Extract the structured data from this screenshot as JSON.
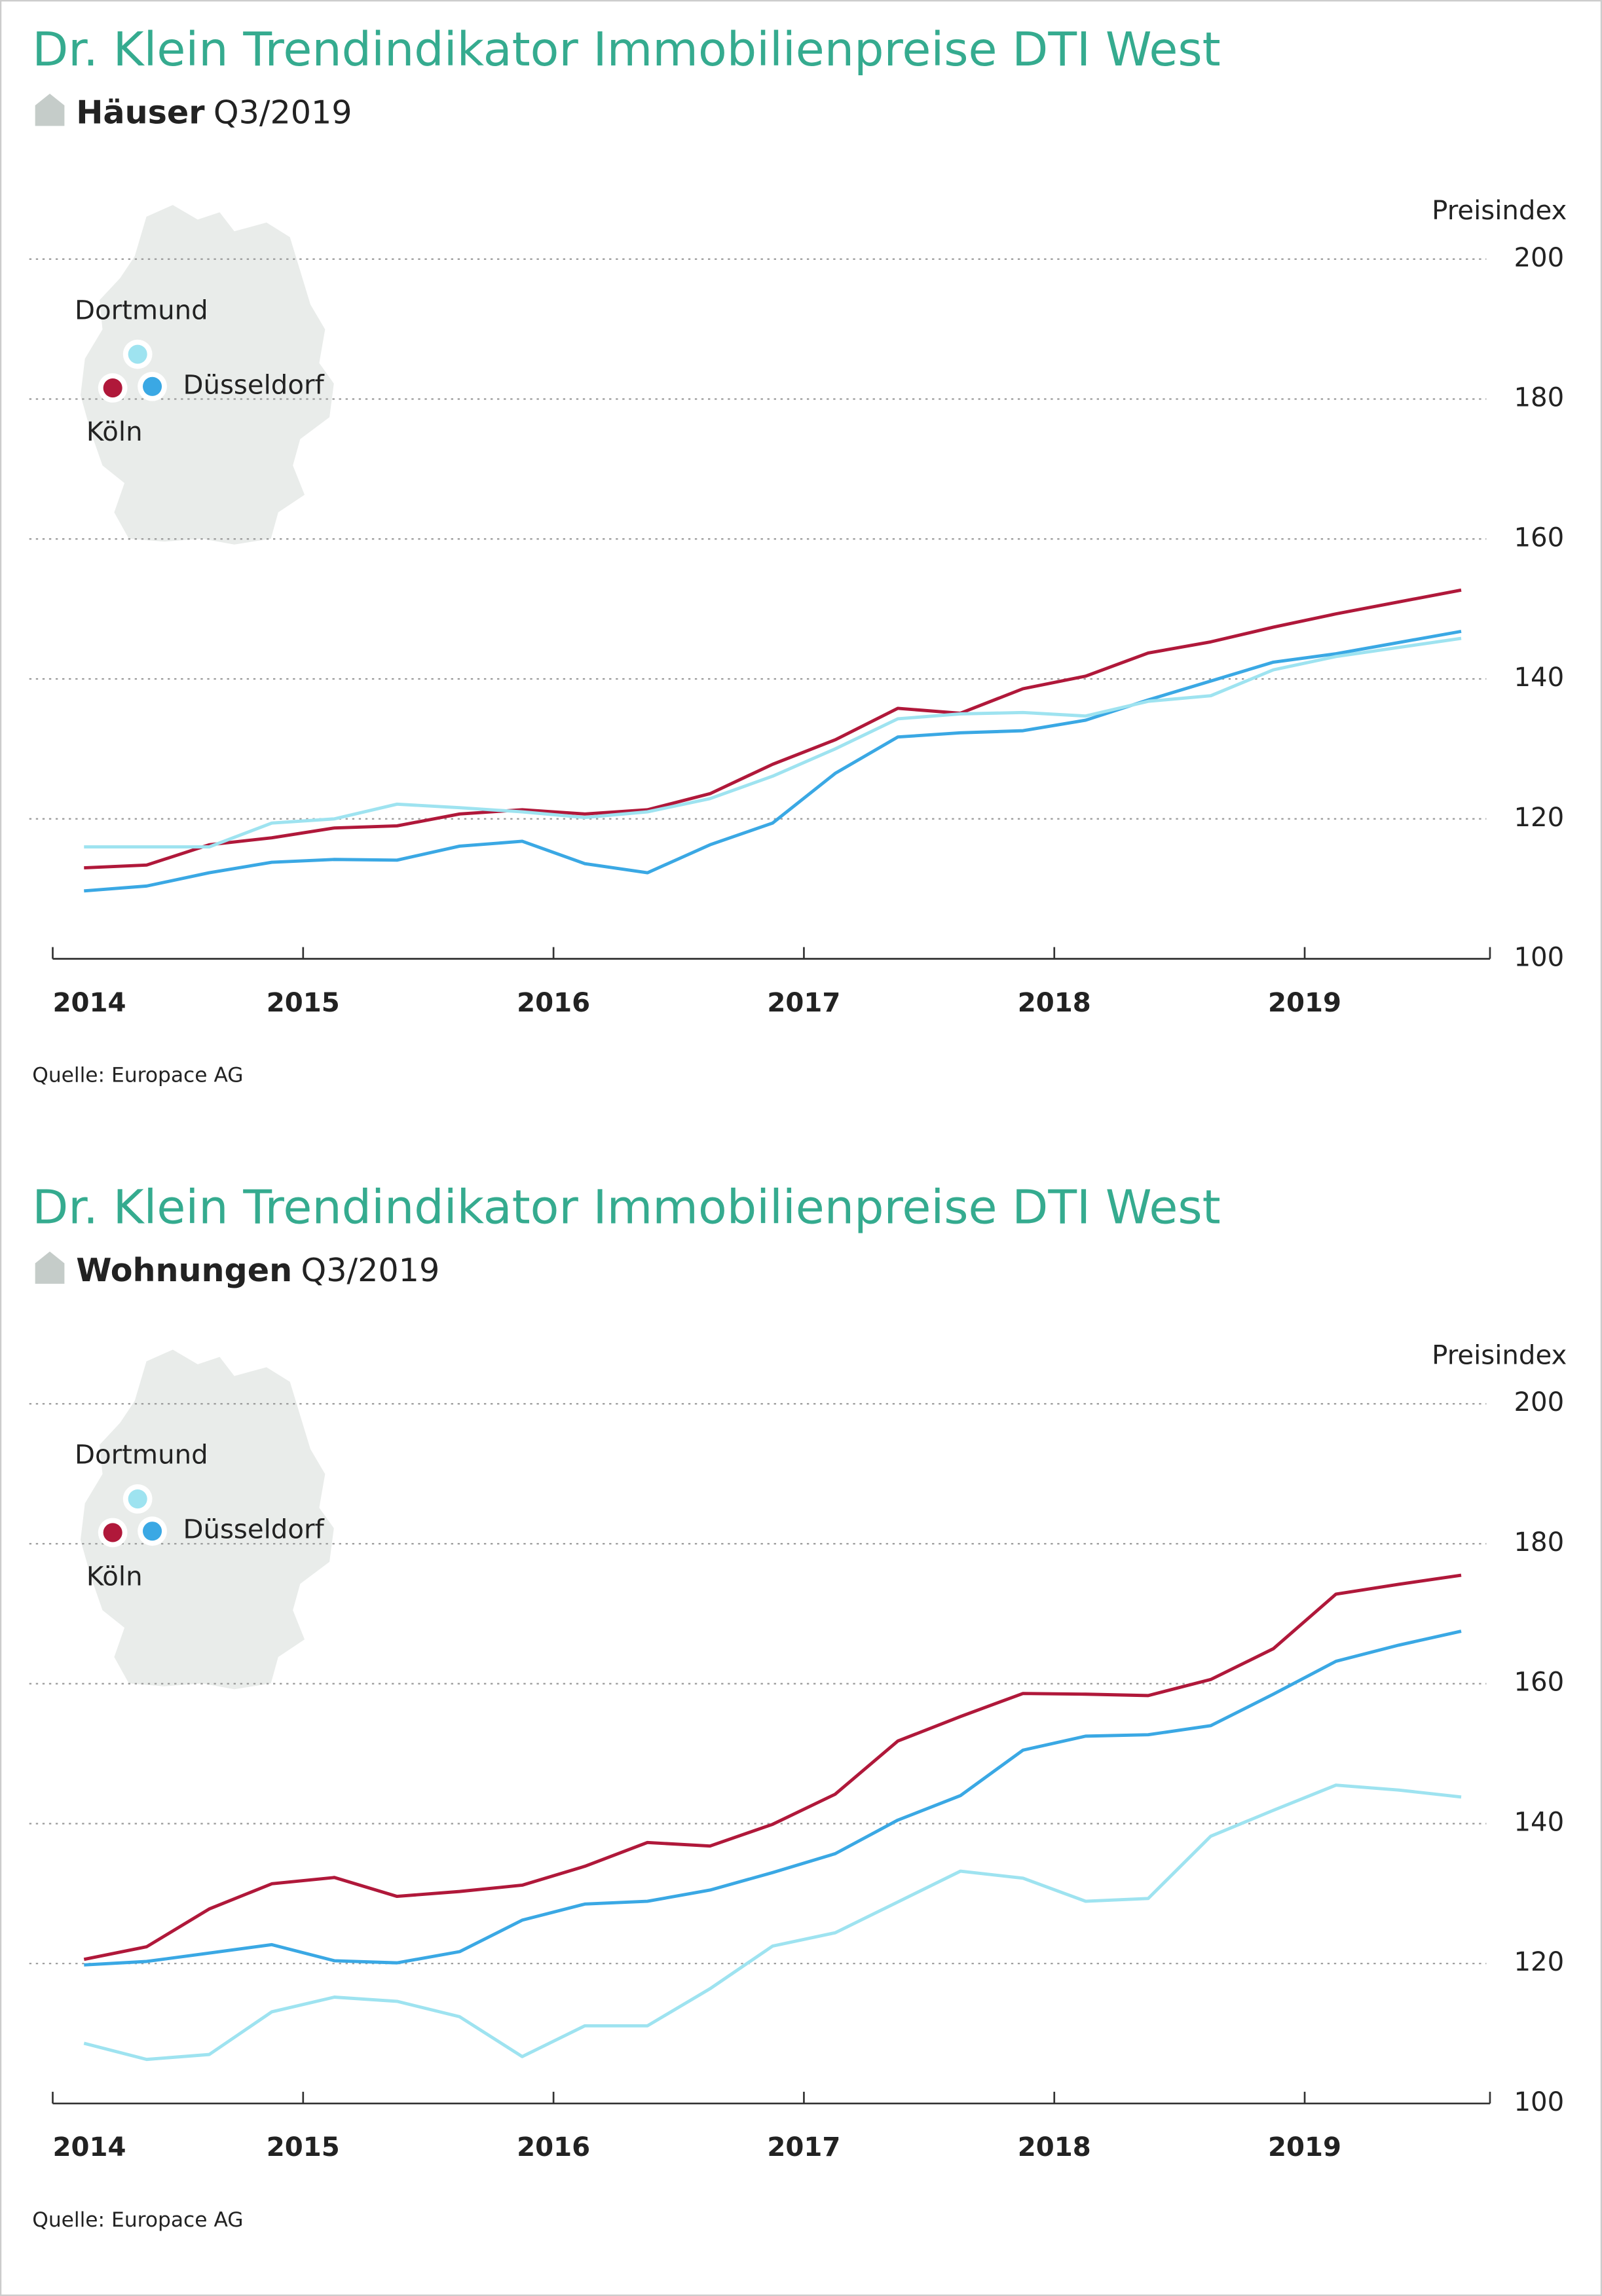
{
  "chart_data": [
    {
      "type": "line",
      "title": "Dr. Klein Trendindikator Immobilienpreise DTI West",
      "subtitle": "Häuser",
      "period": "Q3/2019",
      "y_label": "Preisindex",
      "source": "Quelle: Europace AG",
      "x": [
        2014.125,
        2014.375,
        2014.625,
        2014.875,
        2015.125,
        2015.375,
        2015.625,
        2015.875,
        2016.125,
        2016.375,
        2016.625,
        2016.875,
        2017.125,
        2017.375,
        2017.625,
        2017.875,
        2018.125,
        2018.375,
        2018.625,
        2018.875,
        2019.125,
        2019.375,
        2019.625
      ],
      "xlim": [
        2014,
        2019.74
      ],
      "xticks": [
        2014,
        2015,
        2016,
        2017,
        2018,
        2019
      ],
      "ylim": [
        100,
        200
      ],
      "yticks": [
        100,
        120,
        140,
        160,
        180,
        200
      ],
      "grid": true,
      "series": [
        {
          "name": "Köln",
          "color": "#b0183a",
          "values": [
            113,
            113.4,
            116.3,
            117.3,
            118.7,
            119,
            120.7,
            121.3,
            120.7,
            121.3,
            123.6,
            127.8,
            131.3,
            135.8,
            135.1,
            138.6,
            140.4,
            143.7,
            145.3,
            147.4,
            149.3,
            151,
            152.7
          ]
        },
        {
          "name": "Düsseldorf",
          "color": "#3aa8e4",
          "values": [
            109.7,
            110.4,
            112.3,
            113.8,
            114.2,
            114.1,
            116.1,
            116.8,
            113.6,
            112.3,
            116.3,
            119.4,
            126.5,
            131.7,
            132.3,
            132.6,
            134.1,
            137,
            139.7,
            142.4,
            143.6,
            145.2,
            146.8
          ]
        },
        {
          "name": "Dortmund",
          "color": "#9ee3f0",
          "values": [
            116,
            116,
            116,
            119.4,
            120,
            122.1,
            121.6,
            121,
            120.2,
            121,
            122.9,
            126.1,
            130,
            134.3,
            135,
            135.2,
            134.7,
            136.8,
            137.6,
            141.3,
            143.2,
            144.5,
            145.8
          ]
        }
      ]
    },
    {
      "type": "line",
      "title": "Dr. Klein Trendindikator Immobilienpreise DTI West",
      "subtitle": "Wohnungen",
      "period": "Q3/2019",
      "y_label": "Preisindex",
      "source": "Quelle: Europace AG",
      "x": [
        2014.125,
        2014.375,
        2014.625,
        2014.875,
        2015.125,
        2015.375,
        2015.625,
        2015.875,
        2016.125,
        2016.375,
        2016.625,
        2016.875,
        2017.125,
        2017.375,
        2017.625,
        2017.875,
        2018.125,
        2018.375,
        2018.625,
        2018.875,
        2019.125,
        2019.375,
        2019.625
      ],
      "xlim": [
        2014,
        2019.74
      ],
      "xticks": [
        2014,
        2015,
        2016,
        2017,
        2018,
        2019
      ],
      "ylim": [
        100,
        200
      ],
      "yticks": [
        100,
        120,
        140,
        160,
        180,
        200
      ],
      "grid": true,
      "series": [
        {
          "name": "Köln",
          "color": "#b0183a",
          "values": [
            120.6,
            122.4,
            127.8,
            131.4,
            132.3,
            129.6,
            130.3,
            131.2,
            133.9,
            137.3,
            136.8,
            139.9,
            144.2,
            151.8,
            155.3,
            158.6,
            158.5,
            158.3,
            160.6,
            165,
            172.8,
            174.2,
            175.5
          ]
        },
        {
          "name": "Düsseldorf",
          "color": "#3aa8e4",
          "values": [
            119.8,
            120.3,
            121.5,
            122.7,
            120.4,
            120.1,
            121.7,
            126.2,
            128.5,
            128.9,
            130.5,
            133,
            135.7,
            140.5,
            144,
            150.5,
            152.5,
            152.7,
            154,
            158.5,
            163.2,
            165.5,
            167.5
          ]
        },
        {
          "name": "Dortmund",
          "color": "#9ee3f0",
          "values": [
            108.6,
            106.3,
            107,
            113.1,
            115.2,
            114.6,
            112.4,
            106.7,
            111.1,
            111.1,
            116.4,
            122.5,
            124.4,
            128.8,
            133.2,
            132.2,
            128.9,
            129.3,
            138.2,
            141.9,
            145.5,
            144.8,
            143.8
          ]
        }
      ]
    }
  ]
}
